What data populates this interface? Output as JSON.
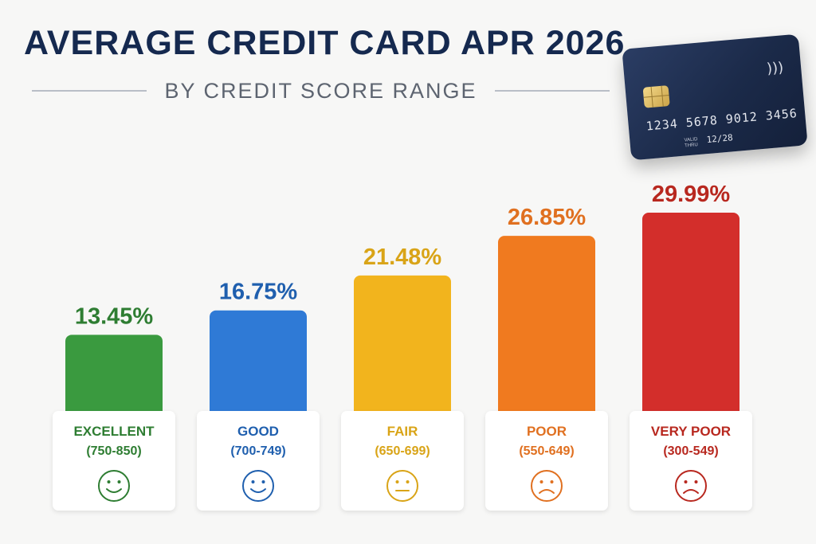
{
  "header": {
    "title": "AVERAGE CREDIT CARD APR 2026",
    "subtitle": "BY CREDIT SCORE RANGE"
  },
  "card": {
    "number": "1234 5678 9012 3456",
    "valid_label": "VALID THRU",
    "expiry": "12/28",
    "contactless_icon": "contactless-icon"
  },
  "chart_data": {
    "type": "bar",
    "title": "AVERAGE CREDIT CARD APR 2026",
    "subtitle": "BY CREDIT SCORE RANGE",
    "categories": [
      "EXCELLENT",
      "GOOD",
      "FAIR",
      "POOR",
      "VERY POOR"
    ],
    "ranges": [
      "(750-850)",
      "(700-749)",
      "(650-699)",
      "(550-649)",
      "(300-549)"
    ],
    "values": [
      13.45,
      16.75,
      21.48,
      26.85,
      29.99
    ],
    "value_labels": [
      "13.45%",
      "16.75%",
      "21.48%",
      "26.85%",
      "29.99%"
    ],
    "colors": [
      "#3a9a3f",
      "#2f7ad6",
      "#f2b41d",
      "#f07a1f",
      "#d32e2b"
    ],
    "label_colors": [
      "#2e7d32",
      "#1f5fae",
      "#d9a417",
      "#e07020",
      "#b8281f"
    ],
    "faces": [
      "happy-face-icon",
      "happy-face-icon",
      "neutral-face-icon",
      "sad-face-icon",
      "sad-face-icon"
    ],
    "xlabel": "",
    "ylabel": "",
    "grid": false,
    "legend": "none"
  }
}
